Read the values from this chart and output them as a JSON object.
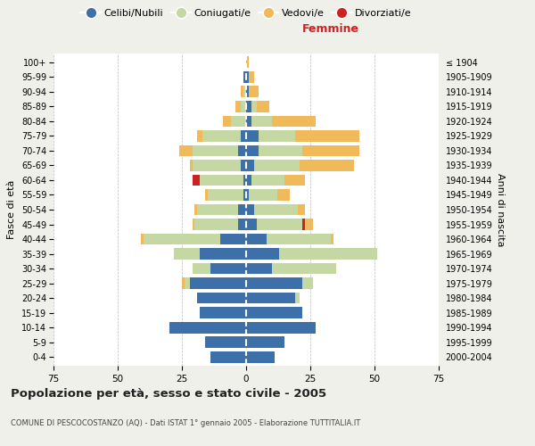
{
  "age_groups": [
    "0-4",
    "5-9",
    "10-14",
    "15-19",
    "20-24",
    "25-29",
    "30-34",
    "35-39",
    "40-44",
    "45-49",
    "50-54",
    "55-59",
    "60-64",
    "65-69",
    "70-74",
    "75-79",
    "80-84",
    "85-89",
    "90-94",
    "95-99",
    "100+"
  ],
  "birth_years": [
    "2000-2004",
    "1995-1999",
    "1990-1994",
    "1985-1989",
    "1980-1984",
    "1975-1979",
    "1970-1974",
    "1965-1969",
    "1960-1964",
    "1955-1959",
    "1950-1954",
    "1945-1949",
    "1940-1944",
    "1935-1939",
    "1930-1934",
    "1925-1929",
    "1920-1924",
    "1915-1919",
    "1910-1914",
    "1905-1909",
    "≤ 1904"
  ],
  "male_celibi": [
    14,
    16,
    30,
    18,
    19,
    22,
    14,
    18,
    10,
    3,
    3,
    1,
    1,
    2,
    3,
    2,
    0,
    0,
    0,
    1,
    0
  ],
  "male_coniugati": [
    0,
    0,
    0,
    0,
    0,
    2,
    7,
    10,
    30,
    17,
    16,
    14,
    17,
    19,
    18,
    15,
    6,
    2,
    1,
    0,
    0
  ],
  "male_vedovi": [
    0,
    0,
    0,
    0,
    0,
    1,
    0,
    0,
    1,
    1,
    1,
    1,
    0,
    1,
    5,
    2,
    3,
    2,
    1,
    0,
    0
  ],
  "male_divorziati": [
    0,
    0,
    0,
    0,
    0,
    0,
    0,
    0,
    0,
    0,
    0,
    0,
    3,
    0,
    0,
    0,
    0,
    0,
    0,
    0,
    0
  ],
  "female_celibi": [
    11,
    15,
    27,
    22,
    19,
    22,
    10,
    13,
    8,
    4,
    3,
    1,
    2,
    3,
    5,
    5,
    2,
    2,
    1,
    1,
    0
  ],
  "female_coniugati": [
    0,
    0,
    0,
    0,
    2,
    4,
    25,
    38,
    25,
    18,
    17,
    11,
    13,
    18,
    17,
    14,
    8,
    2,
    0,
    0,
    0
  ],
  "female_vedovi": [
    0,
    0,
    0,
    0,
    0,
    0,
    0,
    0,
    1,
    3,
    3,
    5,
    8,
    21,
    22,
    25,
    17,
    5,
    4,
    2,
    1
  ],
  "female_divorziati": [
    0,
    0,
    0,
    0,
    0,
    0,
    0,
    0,
    0,
    1,
    0,
    0,
    0,
    0,
    0,
    0,
    0,
    0,
    0,
    0,
    0
  ],
  "color_celibi": "#3d6fa8",
  "color_coniugati": "#c5d8a4",
  "color_vedovi": "#f0b959",
  "color_divorziati": "#cc2222",
  "title_main": "Popolazione per età, sesso e stato civile - 2005",
  "title_sub": "COMUNE DI PESCOCOSTANZO (AQ) - Dati ISTAT 1° gennaio 2005 - Elaborazione TUTTITALIA.IT",
  "xlabel_right": "Femmine",
  "ylabel_left": "Fasce di età",
  "ylabel_right": "Anni di nascita",
  "xlim": 75,
  "bg_color": "#f0f0eb",
  "plot_bg": "#ffffff"
}
